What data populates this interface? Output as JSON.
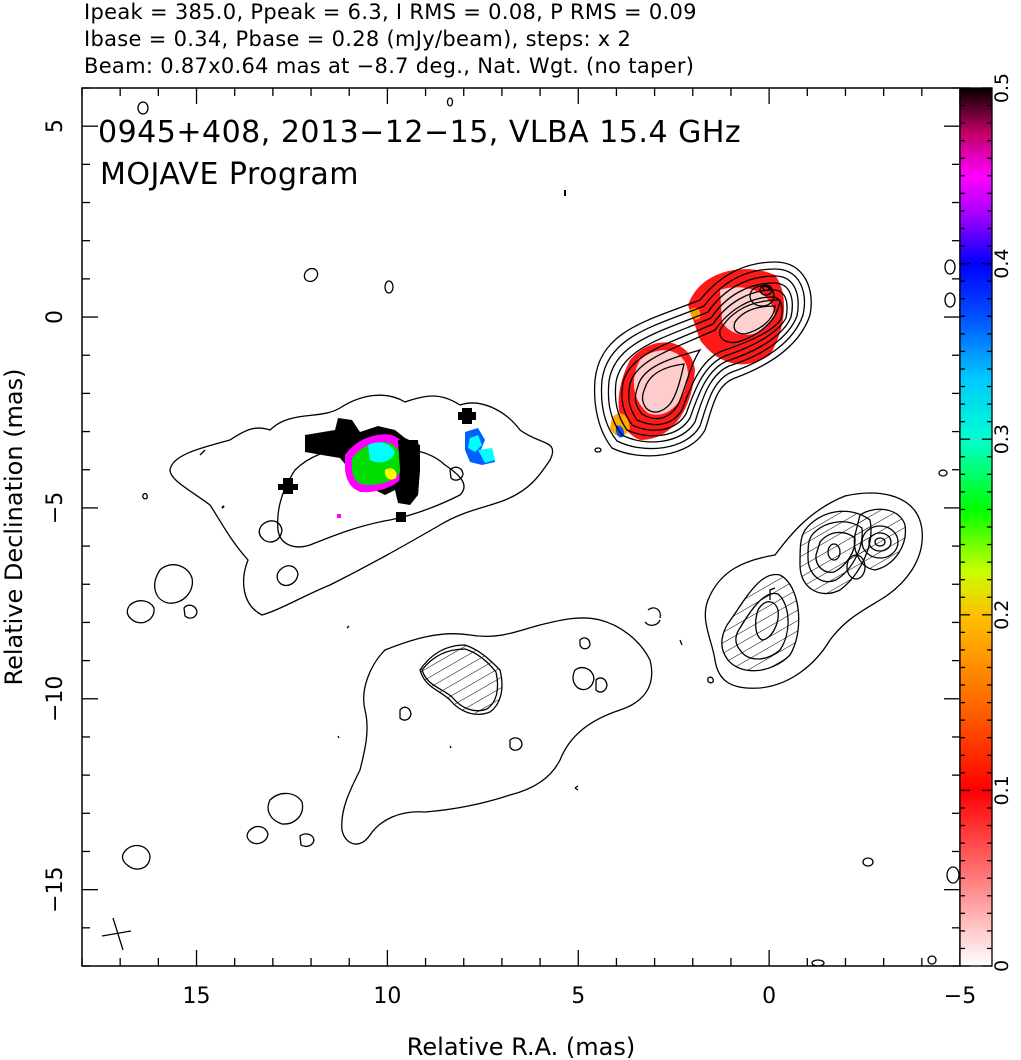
{
  "header": {
    "line1": "Ipeak = 385.0, Ppeak = 6.3, I RMS = 0.08, P RMS = 0.09",
    "line2": "Ibase = 0.34, Pbase = 0.28 (mJy/beam), steps: x 2",
    "line3": "Beam: 0.87x0.64 mas at −8.7 deg., Nat. Wgt. (no taper)"
  },
  "chart_data": {
    "type": "heatmap",
    "title": "0945+408, 2013−12−15, VLBA 15.4 GHz",
    "subtitle": "MOJAVE Program",
    "xlabel": "Relative R.A. (mas)",
    "ylabel": "Relative Declination (mas)",
    "xlim": [
      18.0,
      -5.0
    ],
    "ylim": [
      -17.0,
      6.0
    ],
    "x_ticks": [
      15,
      10,
      5,
      0,
      -5
    ],
    "x_tick_labels": [
      "15",
      "10",
      "5",
      "0",
      "−5"
    ],
    "y_ticks": [
      5,
      0,
      -5,
      -10,
      -15
    ],
    "y_tick_labels": [
      "5",
      "0",
      "−5",
      "−10",
      "−15"
    ],
    "colorbar": {
      "range": [
        0,
        0.5
      ],
      "ticks": [
        0,
        0.1,
        0.2,
        0.3,
        0.4,
        0.5
      ],
      "tick_labels": [
        "0",
        "0.1",
        "0.2",
        "0.3",
        "0.4",
        "0.5"
      ],
      "colors": [
        "#ffffff",
        "#ff0000",
        "#ffa000",
        "#ffff00",
        "#00ff00",
        "#00ffff",
        "#0070ff",
        "#0000ff",
        "#ff00ff",
        "#000000"
      ]
    },
    "beam": {
      "major_mas": 0.87,
      "minor_mas": 0.64,
      "pa_deg": -8.7
    },
    "core_position": [
      0,
      0
    ],
    "colors": {
      "contour": "#000000",
      "background": "#ffffff"
    }
  }
}
